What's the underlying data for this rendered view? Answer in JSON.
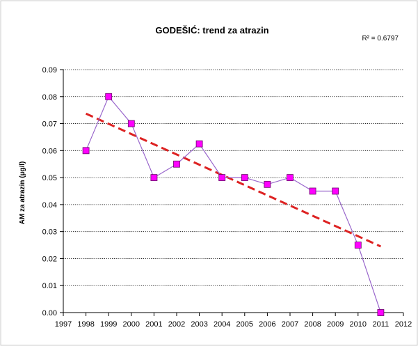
{
  "chart_data": {
    "type": "line",
    "title": "GODEŠIĆ: trend za atrazin",
    "ylabel": "AM za atrazin (µg/l)",
    "xlabel": "",
    "r2_label": "R² = 0.6797",
    "xlim": [
      1997,
      2012
    ],
    "ylim": [
      0,
      0.09
    ],
    "x_ticks": [
      1997,
      1998,
      1999,
      2000,
      2001,
      2002,
      2003,
      2004,
      2005,
      2006,
      2007,
      2008,
      2009,
      2010,
      2011,
      2012
    ],
    "y_ticks": [
      "0.00",
      "0.01",
      "0.02",
      "0.03",
      "0.04",
      "0.05",
      "0.06",
      "0.07",
      "0.08",
      "0.09"
    ],
    "grid": "horizontal dotted",
    "series": [
      {
        "x": [
          1998,
          1999,
          2000,
          2001,
          2002,
          2003,
          2004,
          2005,
          2006,
          2007,
          2008,
          2009,
          2010,
          2011
        ],
        "values": [
          0.06,
          0.08,
          0.07,
          0.05,
          0.055,
          0.0625,
          0.05,
          0.05,
          0.0475,
          0.05,
          0.045,
          0.045,
          0.025,
          0.0
        ],
        "color": "#9966cc",
        "marker_color": "#ff00ff"
      }
    ],
    "trendline": {
      "x": [
        1998,
        2011
      ],
      "values": [
        0.0737,
        0.0245
      ],
      "color": "#dd2222",
      "style": "dashed"
    }
  }
}
